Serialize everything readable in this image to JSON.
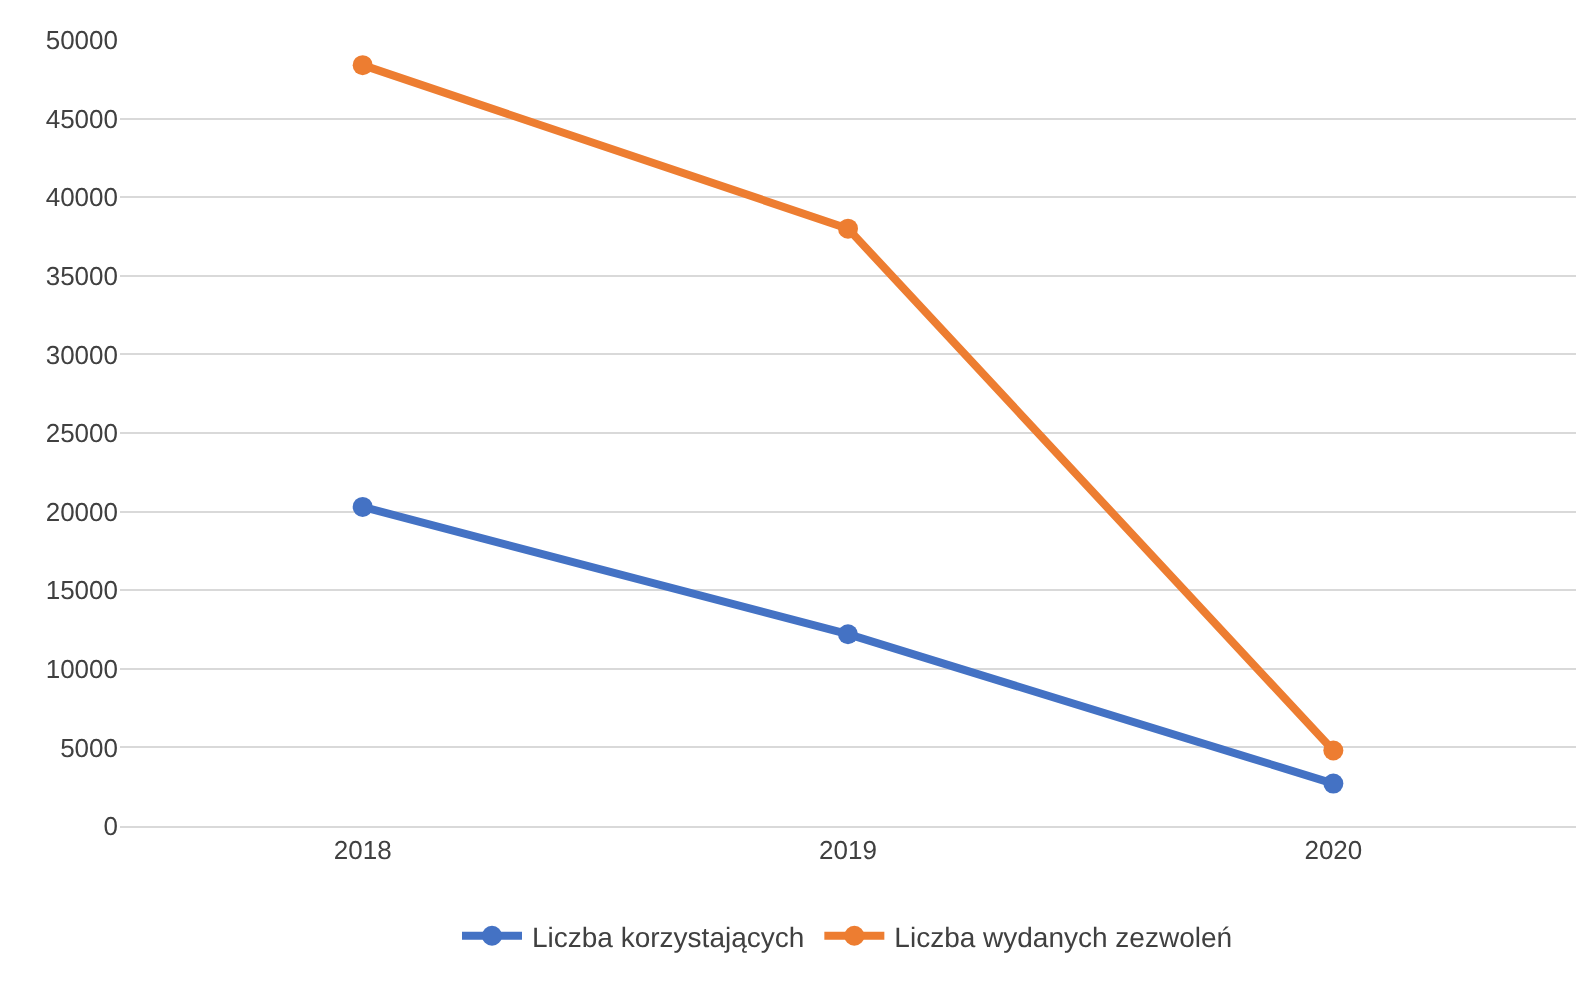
{
  "chart_data": {
    "type": "line",
    "categories": [
      "2018",
      "2019",
      "2020"
    ],
    "series": [
      {
        "name": "Liczba korzystających",
        "color": "#4472c4",
        "values": [
          20300,
          12200,
          2700
        ]
      },
      {
        "name": "Liczba wydanych zezwoleń",
        "color": "#ed7d31",
        "values": [
          48400,
          38000,
          4800
        ]
      }
    ],
    "ylim": [
      0,
      50000
    ],
    "yticks": [
      0,
      5000,
      10000,
      15000,
      20000,
      25000,
      30000,
      35000,
      40000,
      45000,
      50000
    ],
    "grid": "y",
    "legend": "bottom",
    "marker": "circle",
    "line_style": "solid"
  }
}
